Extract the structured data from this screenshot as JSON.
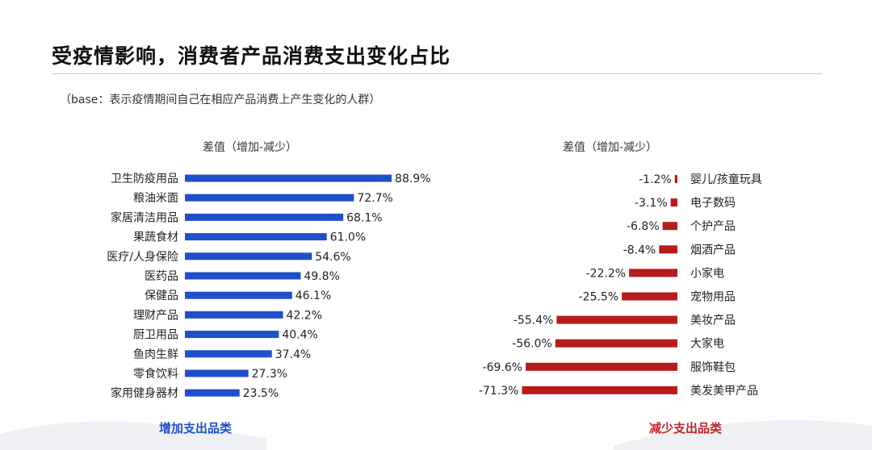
{
  "title": "受疫情影响，消费者产品消费支出变化占比",
  "base_note": "（base：表示疫情期间自己在相应产品消费上产生变化的人群）",
  "colors": {
    "increase": "#1f4fc9",
    "decrease": "#b71c1c",
    "increase_label": "#1f4fc9",
    "decrease_label": "#c0262a"
  },
  "chart_data": [
    {
      "type": "bar",
      "orientation": "horizontal",
      "title": "差值（增加-减少）",
      "footer": "增加支出品类",
      "categories": [
        "卫生防疫用品",
        "粮油米面",
        "家居清洁用品",
        "果蔬食材",
        "医疗/人身保险",
        "医药品",
        "保健品",
        "理财产品",
        "厨卫用品",
        "鱼肉生鲜",
        "零食饮料",
        "家用健身器材"
      ],
      "values": [
        88.9,
        72.7,
        68.1,
        61.0,
        54.6,
        49.8,
        46.1,
        42.2,
        40.4,
        37.4,
        27.3,
        23.5
      ],
      "value_labels": [
        "88.9%",
        "72.7%",
        "68.1%",
        "61.0%",
        "54.6%",
        "49.8%",
        "46.1%",
        "42.2%",
        "40.4%",
        "37.4%",
        "27.3%",
        "23.5%"
      ],
      "xlim": [
        0,
        100
      ]
    },
    {
      "type": "bar",
      "orientation": "horizontal",
      "title": "差值（增加-减少）",
      "footer": "减少支出品类",
      "categories": [
        "婴儿/孩童玩具",
        "电子数码",
        "个护产品",
        "烟酒产品",
        "小家电",
        "宠物用品",
        "美妆产品",
        "大家电",
        "服饰鞋包",
        "美发美甲产品"
      ],
      "values": [
        -1.2,
        -3.1,
        -6.8,
        -8.4,
        -22.2,
        -25.5,
        -55.4,
        -56.0,
        -69.6,
        -71.3
      ],
      "value_labels": [
        "-1.2%",
        "-3.1%",
        "-6.8%",
        "-8.4%",
        "-22.2%",
        "-25.5%",
        "-55.4%",
        "-56.0%",
        "-69.6%",
        "-71.3%"
      ],
      "xlim": [
        -100,
        0
      ]
    }
  ]
}
